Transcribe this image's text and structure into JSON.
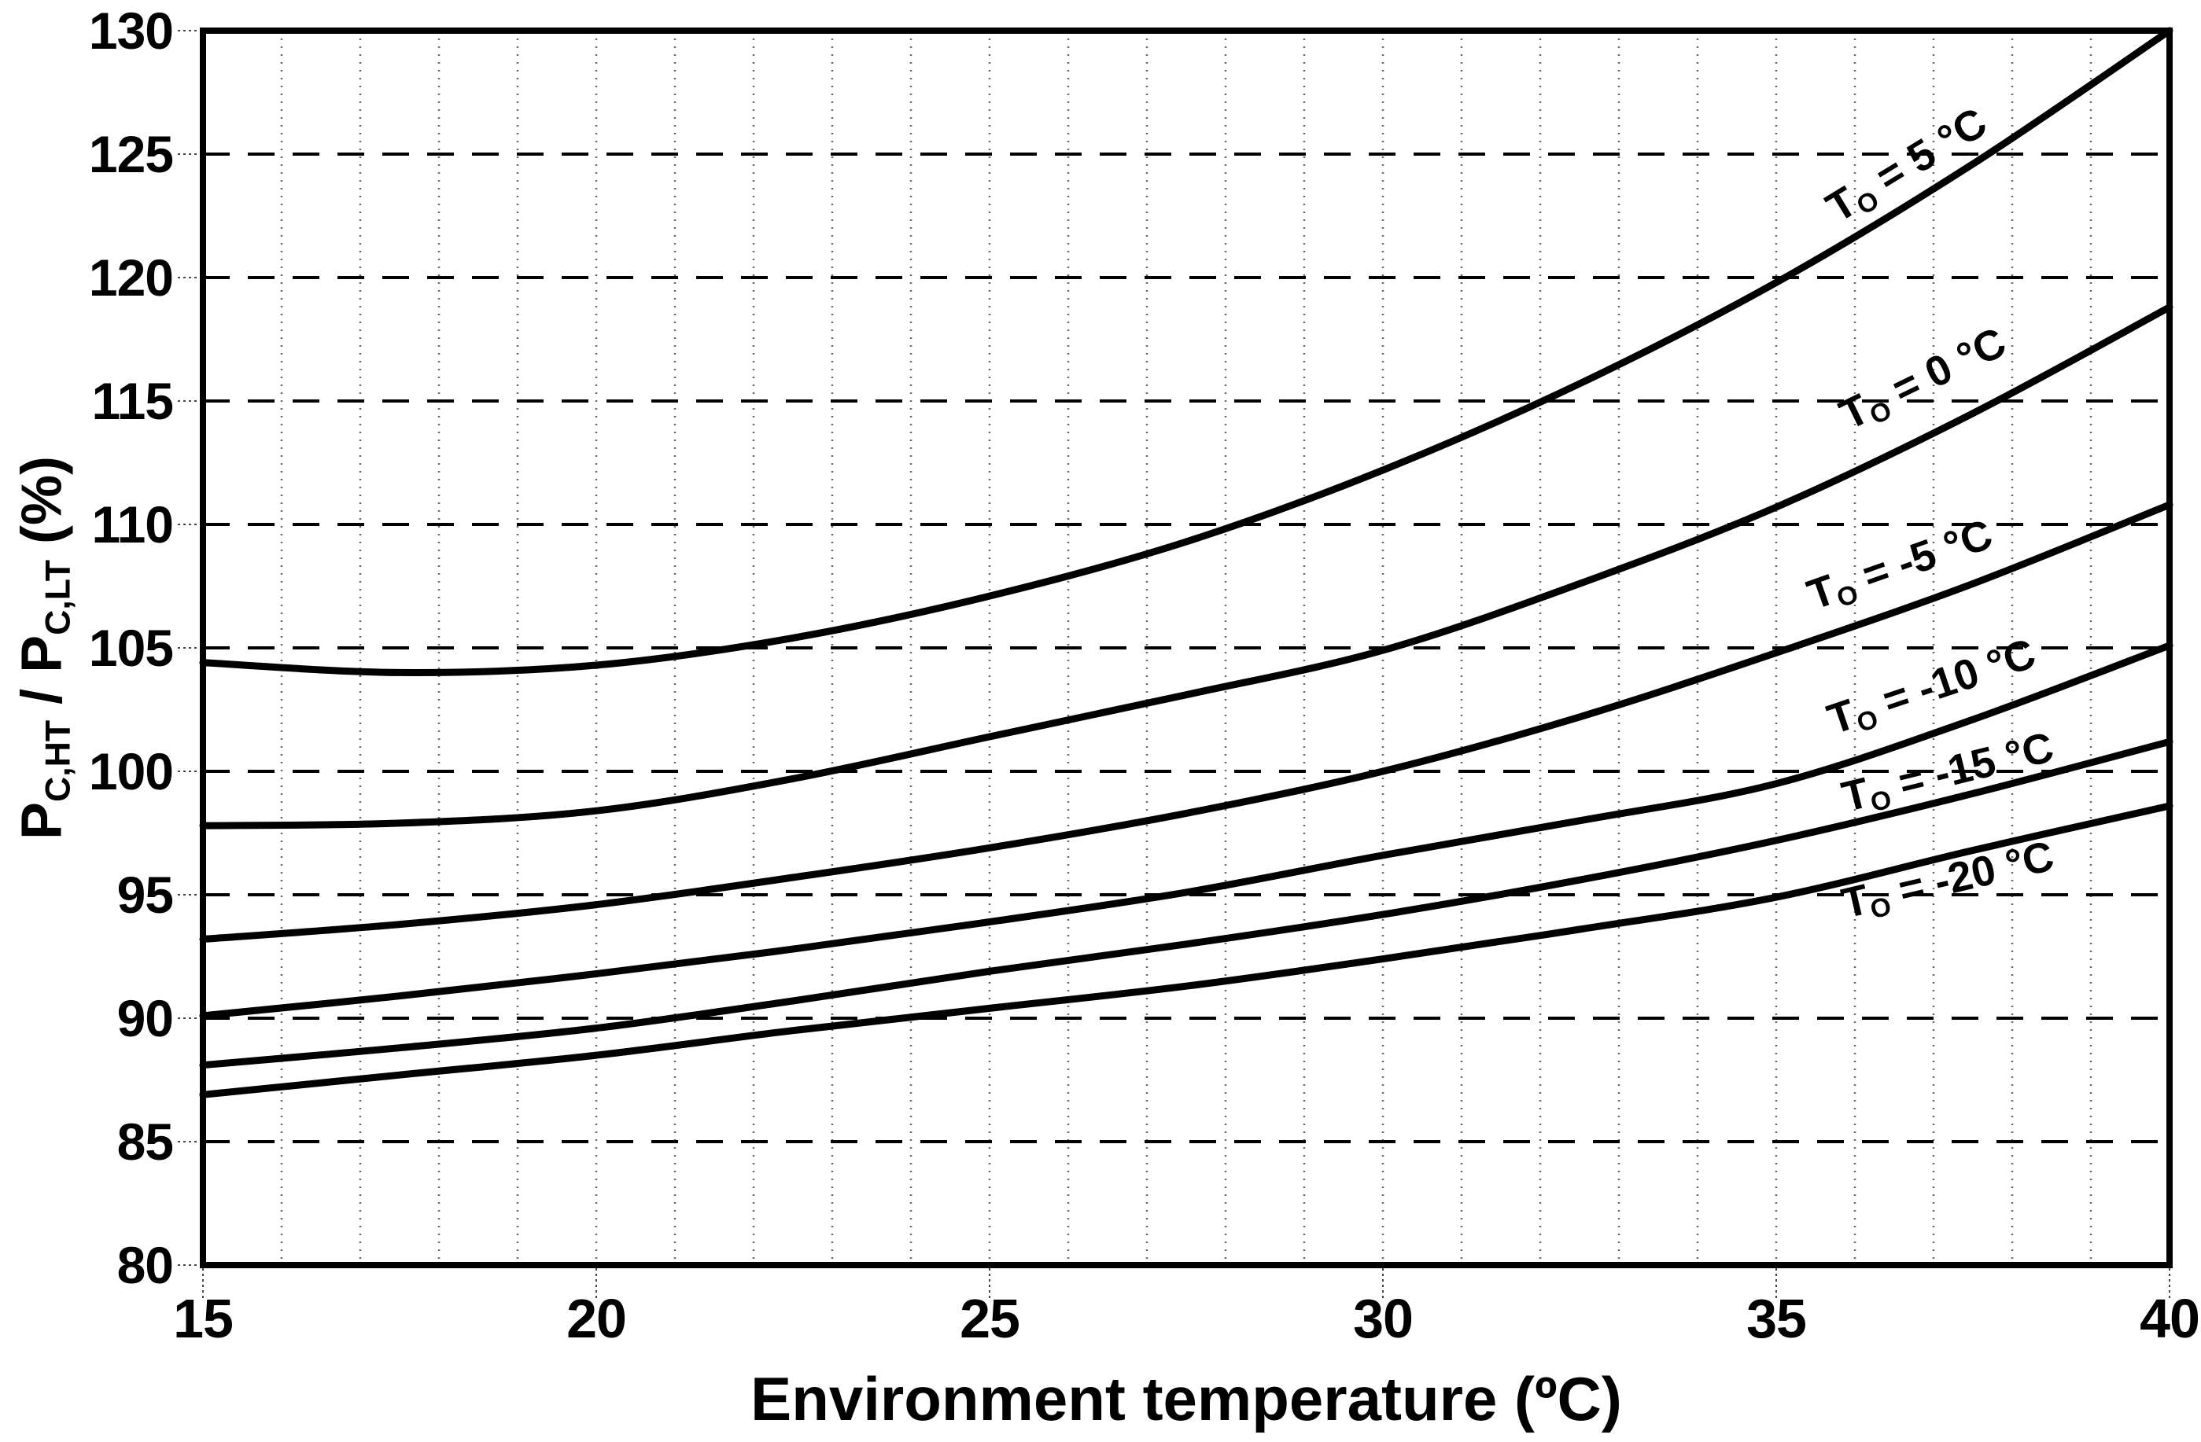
{
  "chart_data": {
    "type": "line",
    "title": "",
    "xlabel": "Environment temperature (ºC)",
    "ylabel_text": "P_C,HT / P_C,LT (%)",
    "ylabel_segments": [
      {
        "t": "P"
      },
      {
        "sub": "C,HT"
      },
      {
        "t": " / P"
      },
      {
        "sub": "C,LT"
      },
      {
        "t": " (%)"
      }
    ],
    "xlim": [
      15,
      40
    ],
    "ylim": [
      80,
      130
    ],
    "x_ticks": [
      15,
      20,
      25,
      30,
      35,
      40
    ],
    "y_ticks": [
      130,
      125,
      120,
      115,
      110,
      105,
      100,
      95,
      90,
      85,
      80
    ],
    "grid": {
      "horizontal": "dashed every 5 %",
      "vertical": "dotted every 1 °C",
      "legend_position": "labels on curves"
    },
    "x": [
      15,
      17.5,
      20,
      22.5,
      25,
      27.5,
      30,
      32.5,
      35,
      37.5,
      40
    ],
    "series": [
      {
        "name": "To = 5 C",
        "label": {
          "base": "T",
          "sub": "O",
          "rest": " = 5 °C"
        },
        "values": [
          104.4,
          104.0,
          104.3,
          105.4,
          107.1,
          109.3,
          112.2,
          115.7,
          119.8,
          124.6,
          130.0
        ]
      },
      {
        "name": "To = 0 C",
        "label": {
          "base": "T",
          "sub": "O",
          "rest": " = 0 °C"
        },
        "values": [
          97.8,
          97.9,
          98.4,
          99.7,
          101.4,
          103.1,
          104.9,
          107.6,
          110.7,
          114.5,
          118.8
        ]
      },
      {
        "name": "To = -5 C",
        "label": {
          "base": "T",
          "sub": "O",
          "rest": " = -5 °C"
        },
        "values": [
          93.2,
          93.8,
          94.6,
          95.7,
          96.9,
          98.3,
          100.0,
          102.2,
          104.8,
          107.6,
          110.8
        ]
      },
      {
        "name": "To = -10 C",
        "label": {
          "base": "T",
          "sub": "O",
          "rest": " = -10 °C"
        },
        "values": [
          90.1,
          90.9,
          91.8,
          92.8,
          93.9,
          95.1,
          96.6,
          98.0,
          99.5,
          102.1,
          105.1
        ]
      },
      {
        "name": "To = -15 C",
        "label": {
          "base": "T",
          "sub": "O",
          "rest": " = -15 °C"
        },
        "values": [
          88.1,
          88.8,
          89.6,
          90.7,
          91.9,
          93.0,
          94.2,
          95.6,
          97.2,
          99.1,
          101.2
        ]
      },
      {
        "name": "To = -20 C",
        "label": {
          "base": "T",
          "sub": "O",
          "rest": " = -20 °C"
        },
        "values": [
          86.9,
          87.7,
          88.5,
          89.5,
          90.4,
          91.3,
          92.4,
          93.6,
          94.9,
          96.8,
          98.6
        ]
      }
    ]
  }
}
